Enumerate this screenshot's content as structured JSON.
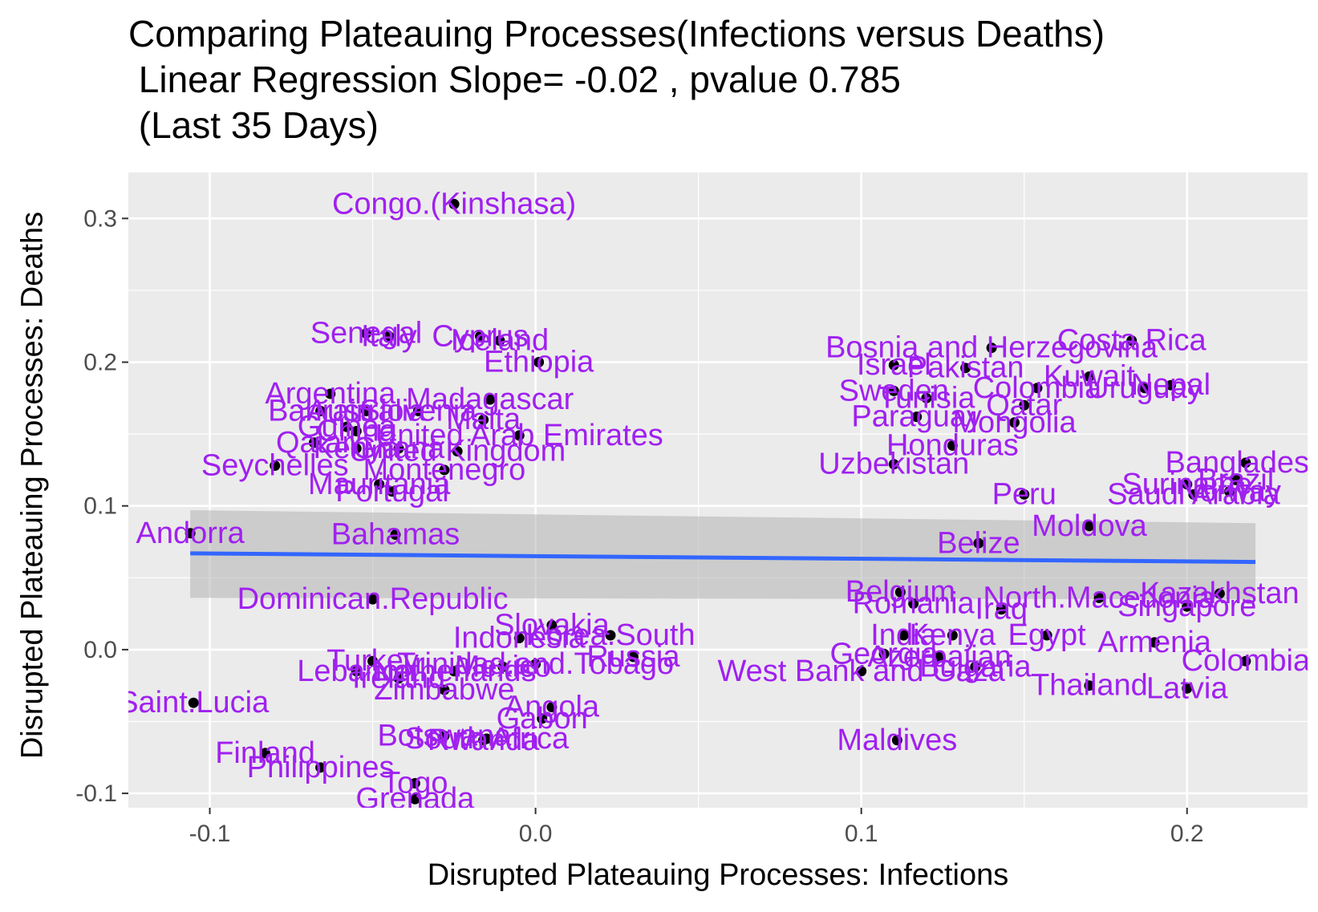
{
  "title_lines": [
    "Comparing Plateauing Processes(Infections versus Deaths)",
    " Linear Regression Slope= -0.02 , pvalue 0.785",
    " (Last 35 Days)"
  ],
  "chart_data": {
    "type": "scatter",
    "title": "Comparing Plateauing Processes(Infections versus Deaths)",
    "subtitle": "Linear Regression Slope= -0.02 , pvalue 0.785 (Last 35 Days)",
    "xlabel": "Disrupted Plateauing Processes: Infections",
    "ylabel": "Disrupted Plateauing Processes: Deaths",
    "xlim": [
      -0.125,
      0.237
    ],
    "ylim": [
      -0.11,
      0.332
    ],
    "x_ticks": [
      -0.1,
      0.0,
      0.1,
      0.2
    ],
    "x_tick_labels": [
      "-0.1",
      "0.0",
      "0.1",
      "0.2"
    ],
    "y_ticks": [
      -0.1,
      0.0,
      0.1,
      0.2,
      0.3
    ],
    "y_tick_labels": [
      "-0.1",
      "0.0",
      "0.1",
      "0.2",
      "0.3"
    ],
    "grid": true,
    "legend": "none",
    "colors": {
      "label": "#a020f0",
      "point": "#000000",
      "line": "#3366ff",
      "band": "#b3b3b3",
      "panel": "#ebebeb",
      "grid": "#ffffff"
    },
    "regression": {
      "x": [
        -0.106,
        0.221
      ],
      "y": [
        0.067,
        0.061
      ],
      "band_lower": [
        0.036,
        0.035
      ],
      "band_upper": [
        0.097,
        0.088
      ]
    },
    "points": [
      {
        "label": "Congo.(Kinshasa)",
        "x": -0.025,
        "y": 0.31
      },
      {
        "label": "Senegal",
        "x": -0.052,
        "y": 0.22
      },
      {
        "label": "Italy",
        "x": -0.045,
        "y": 0.218
      },
      {
        "label": "Cyprus",
        "x": -0.017,
        "y": 0.218
      },
      {
        "label": "Iceland",
        "x": -0.011,
        "y": 0.215
      },
      {
        "label": "Ethiopia",
        "x": 0.001,
        "y": 0.2
      },
      {
        "label": "Argentina",
        "x": -0.063,
        "y": 0.178
      },
      {
        "label": "Madagascar",
        "x": -0.014,
        "y": 0.174
      },
      {
        "label": "Bahrain",
        "x": -0.066,
        "y": 0.166
      },
      {
        "label": "Australia",
        "x": -0.052,
        "y": 0.166
      },
      {
        "label": "Slovenia",
        "x": -0.036,
        "y": 0.166
      },
      {
        "label": "Malta",
        "x": -0.016,
        "y": 0.16
      },
      {
        "label": "Guinea",
        "x": -0.058,
        "y": 0.155
      },
      {
        "label": "China",
        "x": -0.055,
        "y": 0.152
      },
      {
        "label": "United Arab Emirates",
        "x": -0.005,
        "y": 0.149
      },
      {
        "label": "Qatar",
        "x": -0.068,
        "y": 0.144
      },
      {
        "label": "Kenya",
        "x": -0.055,
        "y": 0.14
      },
      {
        "label": "Ghana",
        "x": -0.042,
        "y": 0.14
      },
      {
        "label": "United Kingdom",
        "x": -0.024,
        "y": 0.138
      },
      {
        "label": "Montenegro",
        "x": -0.028,
        "y": 0.125
      },
      {
        "label": "Seychelles",
        "x": -0.08,
        "y": 0.128
      },
      {
        "label": "Mauritania",
        "x": -0.048,
        "y": 0.115
      },
      {
        "label": "Portugal",
        "x": -0.044,
        "y": 0.11
      },
      {
        "label": "Andorra",
        "x": -0.106,
        "y": 0.081
      },
      {
        "label": "Bahamas",
        "x": -0.043,
        "y": 0.08
      },
      {
        "label": "Dominican.Republic",
        "x": -0.05,
        "y": 0.035
      },
      {
        "label": "Slovakia",
        "x": 0.005,
        "y": 0.017
      },
      {
        "label": "Korea.South",
        "x": 0.023,
        "y": 0.01
      },
      {
        "label": "Indonesia",
        "x": -0.005,
        "y": 0.008
      },
      {
        "label": "Russia",
        "x": 0.03,
        "y": -0.005
      },
      {
        "label": "Turkey",
        "x": -0.05,
        "y": -0.008
      },
      {
        "label": "Lebanon",
        "x": -0.055,
        "y": -0.015
      },
      {
        "label": "Trinidad.and.Tobago",
        "x": 0.0,
        "y": -0.01
      },
      {
        "label": "Ireland",
        "x": -0.042,
        "y": -0.02
      },
      {
        "label": "Netherlands",
        "x": -0.025,
        "y": -0.015
      },
      {
        "label": "Mexico",
        "x": -0.01,
        "y": -0.012
      },
      {
        "label": "Zimbabwe",
        "x": -0.028,
        "y": -0.028
      },
      {
        "label": "Saint.Lucia",
        "x": -0.105,
        "y": -0.037
      },
      {
        "label": "Angola",
        "x": 0.005,
        "y": -0.04
      },
      {
        "label": "Gabon",
        "x": 0.002,
        "y": -0.048
      },
      {
        "label": "Botswana",
        "x": -0.028,
        "y": -0.06
      },
      {
        "label": "South Africa",
        "x": -0.015,
        "y": -0.062
      },
      {
        "label": "Rwanda",
        "x": -0.016,
        "y": -0.063
      },
      {
        "label": "Finland",
        "x": -0.083,
        "y": -0.072
      },
      {
        "label": "Philippines",
        "x": -0.066,
        "y": -0.082
      },
      {
        "label": "Togo",
        "x": -0.037,
        "y": -0.093
      },
      {
        "label": "Grenada",
        "x": -0.037,
        "y": -0.104
      },
      {
        "label": "Bosnia and Herzegovina",
        "x": 0.14,
        "y": 0.21
      },
      {
        "label": "Costa Rica",
        "x": 0.183,
        "y": 0.215
      },
      {
        "label": "Israel",
        "x": 0.11,
        "y": 0.198
      },
      {
        "label": "Pakistan",
        "x": 0.132,
        "y": 0.196
      },
      {
        "label": "Kuwait",
        "x": 0.17,
        "y": 0.19
      },
      {
        "label": "Nepal",
        "x": 0.195,
        "y": 0.184
      },
      {
        "label": "Uruguay",
        "x": 0.187,
        "y": 0.182
      },
      {
        "label": "Sweden",
        "x": 0.11,
        "y": 0.18
      },
      {
        "label": "Colombia",
        "x": 0.154,
        "y": 0.182
      },
      {
        "label": "Tunisia",
        "x": 0.12,
        "y": 0.175
      },
      {
        "label": "Qatar",
        "x": 0.15,
        "y": 0.17
      },
      {
        "label": "Paraguay",
        "x": 0.117,
        "y": 0.162
      },
      {
        "label": "Mongolia",
        "x": 0.147,
        "y": 0.158
      },
      {
        "label": "Honduras",
        "x": 0.128,
        "y": 0.142
      },
      {
        "label": "Uzbekistan",
        "x": 0.11,
        "y": 0.129
      },
      {
        "label": "Bangladesh",
        "x": 0.218,
        "y": 0.13
      },
      {
        "label": "Suriname",
        "x": 0.2,
        "y": 0.115
      },
      {
        "label": "Brazil",
        "x": 0.215,
        "y": 0.118
      },
      {
        "label": "Norway",
        "x": 0.213,
        "y": 0.11
      },
      {
        "label": "Saudi Arabia",
        "x": 0.202,
        "y": 0.108
      },
      {
        "label": "Peru",
        "x": 0.15,
        "y": 0.108
      },
      {
        "label": "Moldova",
        "x": 0.17,
        "y": 0.086
      },
      {
        "label": "Belize",
        "x": 0.136,
        "y": 0.074
      },
      {
        "label": "Belgium",
        "x": 0.112,
        "y": 0.04
      },
      {
        "label": "Kazakhstan",
        "x": 0.21,
        "y": 0.039
      },
      {
        "label": "Romania",
        "x": 0.116,
        "y": 0.032
      },
      {
        "label": "North.Macedonia",
        "x": 0.173,
        "y": 0.036
      },
      {
        "label": "Iraq",
        "x": 0.143,
        "y": 0.028
      },
      {
        "label": "Singapore",
        "x": 0.2,
        "y": 0.03
      },
      {
        "label": "India",
        "x": 0.113,
        "y": 0.01
      },
      {
        "label": "Kenya",
        "x": 0.128,
        "y": 0.01
      },
      {
        "label": "Egypt",
        "x": 0.157,
        "y": 0.01
      },
      {
        "label": "Armenia",
        "x": 0.19,
        "y": 0.005
      },
      {
        "label": "Georgia",
        "x": 0.107,
        "y": -0.003
      },
      {
        "label": "Azerbaijan",
        "x": 0.124,
        "y": -0.005
      },
      {
        "label": "West Bank and Gaza",
        "x": 0.1,
        "y": -0.015
      },
      {
        "label": "Bulgaria",
        "x": 0.135,
        "y": -0.012
      },
      {
        "label": "Thailand",
        "x": 0.17,
        "y": -0.025
      },
      {
        "label": "Latvia",
        "x": 0.2,
        "y": -0.027
      },
      {
        "label": "Colombia",
        "x": 0.218,
        "y": -0.008
      },
      {
        "label": "Maldives",
        "x": 0.111,
        "y": -0.063
      }
    ]
  }
}
